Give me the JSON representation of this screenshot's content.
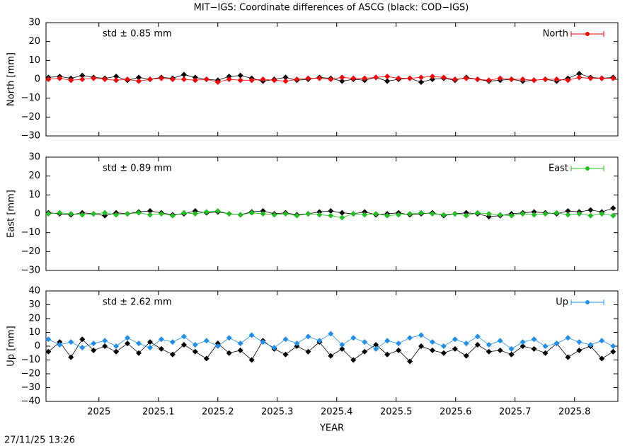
{
  "title": "MIT−IGS: Coordinate differences of ASCG (black: COD−IGS)",
  "footer": "27/11/25 13:26",
  "chart_data": [
    {
      "type": "line",
      "ylabel": "North [mm]",
      "annotation": "std ± 0.85 mm",
      "legend": "top-right",
      "show_xtick_labels": false,
      "xlim": [
        2024.911,
        2025.873
      ],
      "xticks": [
        2025,
        2025.1,
        2025.2,
        2025.3,
        2025.4,
        2025.5,
        2025.6,
        2025.7,
        2025.8
      ],
      "ylim": [
        -30,
        30
      ],
      "yticks": [
        {
          "value": -30,
          "label": "−30"
        },
        {
          "value": -20,
          "label": "−20"
        },
        {
          "value": -10,
          "label": "−10"
        },
        0,
        10,
        20,
        30
      ],
      "x": [
        2024.915,
        2024.934,
        2024.953,
        2024.972,
        2024.991,
        2025.01,
        2025.029,
        2025.048,
        2025.067,
        2025.086,
        2025.105,
        2025.124,
        2025.143,
        2025.162,
        2025.181,
        2025.2,
        2025.219,
        2025.238,
        2025.257,
        2025.276,
        2025.295,
        2025.314,
        2025.333,
        2025.352,
        2025.371,
        2025.39,
        2025.409,
        2025.428,
        2025.447,
        2025.466,
        2025.485,
        2025.504,
        2025.523,
        2025.542,
        2025.561,
        2025.58,
        2025.599,
        2025.618,
        2025.637,
        2025.656,
        2025.675,
        2025.694,
        2025.713,
        2025.732,
        2025.751,
        2025.77,
        2025.789,
        2025.808,
        2025.827,
        2025.846,
        2025.865
      ],
      "series": [
        {
          "color": "#000000",
          "values": [
            1,
            1.5,
            0.5,
            2,
            1,
            0.5,
            1.5,
            -0.5,
            1,
            0,
            1,
            0.5,
            2.5,
            1,
            0,
            -0.5,
            1.5,
            2,
            0.5,
            -1,
            0,
            1,
            -0.5,
            0,
            1,
            0.5,
            -1,
            0,
            -0.5,
            1,
            -1,
            0,
            0.5,
            -1.5,
            0,
            0.5,
            -0.5,
            1,
            0,
            -1,
            -0.5,
            0,
            -1,
            -0.5,
            0,
            -1,
            0.5,
            3,
            1,
            0.5,
            1
          ]
        },
        {
          "name": "North",
          "color": "#ff0000",
          "values": [
            0,
            0.5,
            -0.5,
            0,
            0.5,
            0,
            -0.5,
            0,
            -1,
            0,
            0.5,
            0,
            0,
            -0.5,
            0,
            -1.5,
            0,
            -0.5,
            -0.5,
            0,
            -0.5,
            -1,
            0,
            0.5,
            0.5,
            0,
            1,
            0.5,
            0.5,
            1,
            1.5,
            0.5,
            0.5,
            1,
            1.5,
            1,
            0,
            0.5,
            0,
            -0.5,
            0.5,
            0,
            0,
            -0.5,
            0,
            0,
            -0.5,
            1,
            0.5,
            0.5,
            0.5
          ]
        }
      ]
    },
    {
      "type": "line",
      "ylabel": "East [mm]",
      "annotation": "std ± 0.89 mm",
      "legend": "top-right",
      "show_xtick_labels": false,
      "xlim": [
        2024.911,
        2025.873
      ],
      "xticks": [
        2025,
        2025.1,
        2025.2,
        2025.3,
        2025.4,
        2025.5,
        2025.6,
        2025.7,
        2025.8
      ],
      "ylim": [
        -30,
        30
      ],
      "yticks": [
        {
          "value": -30,
          "label": "−30"
        },
        {
          "value": -20,
          "label": "−20"
        },
        {
          "value": -10,
          "label": "−10"
        },
        0,
        10,
        20,
        30
      ],
      "x": [
        2024.915,
        2024.934,
        2024.953,
        2024.972,
        2024.991,
        2025.01,
        2025.029,
        2025.048,
        2025.067,
        2025.086,
        2025.105,
        2025.124,
        2025.143,
        2025.162,
        2025.181,
        2025.2,
        2025.219,
        2025.238,
        2025.257,
        2025.276,
        2025.295,
        2025.314,
        2025.333,
        2025.352,
        2025.371,
        2025.39,
        2025.409,
        2025.428,
        2025.447,
        2025.466,
        2025.485,
        2025.504,
        2025.523,
        2025.542,
        2025.561,
        2025.58,
        2025.599,
        2025.618,
        2025.637,
        2025.656,
        2025.675,
        2025.694,
        2025.713,
        2025.732,
        2025.751,
        2025.77,
        2025.789,
        2025.808,
        2025.827,
        2025.846,
        2025.865
      ],
      "series": [
        {
          "color": "#000000",
          "values": [
            0.5,
            0,
            -0.5,
            0.5,
            0,
            -1,
            0.5,
            0,
            1,
            1.5,
            0.5,
            -0.5,
            0,
            1.5,
            0.5,
            1,
            0,
            -0.5,
            1,
            1.5,
            0,
            0.5,
            -0.5,
            0,
            1,
            1.5,
            0.5,
            0,
            1,
            -0.5,
            0,
            0.5,
            -0.5,
            0,
            0.5,
            -1,
            0,
            0.5,
            0,
            -1.5,
            -1,
            0,
            0.5,
            1,
            0.5,
            0,
            1.5,
            1,
            2,
            1,
            3
          ]
        },
        {
          "name": "East",
          "color": "#1fc01f",
          "values": [
            0,
            0.5,
            0,
            -0.5,
            0,
            0.5,
            -0.5,
            0,
            0.5,
            -0.5,
            0,
            -1,
            0.5,
            0,
            1,
            1.5,
            0,
            -0.5,
            0.5,
            0,
            -0.5,
            0,
            -1,
            0,
            -0.5,
            -1,
            -2,
            0,
            -0.5,
            0,
            -1,
            -0.5,
            0,
            0.5,
            0,
            -0.5,
            0,
            -1,
            0.5,
            0,
            -0.5,
            -1,
            0,
            -0.5,
            0,
            0.5,
            -0.5,
            0,
            -1,
            0,
            -1
          ]
        }
      ]
    },
    {
      "type": "line",
      "ylabel": "Up [mm]",
      "annotation": "std ± 2.62 mm",
      "legend": "top-right",
      "show_xtick_labels": true,
      "xlabel": "YEAR",
      "xlim": [
        2024.911,
        2025.873
      ],
      "xticks": [
        2025,
        2025.1,
        2025.2,
        2025.3,
        2025.4,
        2025.5,
        2025.6,
        2025.7,
        2025.8
      ],
      "ylim": [
        -40,
        40
      ],
      "yticks": [
        {
          "value": -40,
          "label": "−40"
        },
        {
          "value": -30,
          "label": "−30"
        },
        {
          "value": -20,
          "label": "−20"
        },
        {
          "value": -10,
          "label": "−10"
        },
        0,
        10,
        20,
        30,
        40
      ],
      "x": [
        2024.915,
        2024.934,
        2024.953,
        2024.972,
        2024.991,
        2025.01,
        2025.029,
        2025.048,
        2025.067,
        2025.086,
        2025.105,
        2025.124,
        2025.143,
        2025.162,
        2025.181,
        2025.2,
        2025.219,
        2025.238,
        2025.257,
        2025.276,
        2025.295,
        2025.314,
        2025.333,
        2025.352,
        2025.371,
        2025.39,
        2025.409,
        2025.428,
        2025.447,
        2025.466,
        2025.485,
        2025.504,
        2025.523,
        2025.542,
        2025.561,
        2025.58,
        2025.599,
        2025.618,
        2025.637,
        2025.656,
        2025.675,
        2025.694,
        2025.713,
        2025.732,
        2025.751,
        2025.77,
        2025.789,
        2025.808,
        2025.827,
        2025.846,
        2025.865
      ],
      "series": [
        {
          "color": "#000000",
          "values": [
            -4,
            3,
            -8,
            5,
            -3,
            0,
            -4,
            2,
            -5,
            3,
            -2,
            -6,
            1,
            -4,
            -9,
            2,
            -5,
            -3,
            -10,
            4,
            -2,
            -6,
            0,
            -4,
            3,
            -7,
            -2,
            -10,
            -4,
            1,
            -6,
            -3,
            -11,
            0,
            -3,
            -5,
            -2,
            -7,
            1,
            -4,
            -3,
            -6,
            0,
            -2,
            -5,
            2,
            -8,
            -3,
            0,
            -9,
            -4
          ]
        },
        {
          "name": "Up",
          "color": "#1f8fee",
          "values": [
            5,
            1,
            3,
            -1,
            2,
            4,
            0,
            6,
            2,
            -1,
            5,
            3,
            7,
            1,
            4,
            0,
            6,
            2,
            8,
            3,
            -1,
            5,
            2,
            7,
            4,
            9,
            1,
            6,
            3,
            -2,
            4,
            2,
            6,
            8,
            3,
            0,
            5,
            2,
            7,
            1,
            4,
            -2,
            3,
            5,
            0,
            2,
            6,
            3,
            1,
            4,
            0
          ]
        }
      ]
    }
  ]
}
